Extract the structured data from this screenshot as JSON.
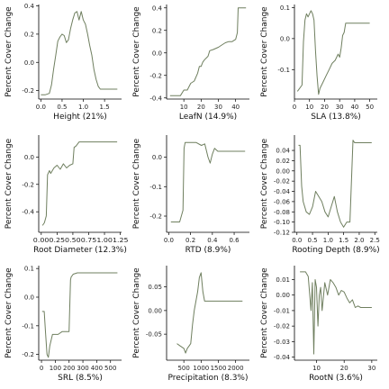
{
  "colors": {
    "line": "#6f7f5f",
    "axis": "#000000"
  },
  "chart_data": [
    {
      "type": "line",
      "title": "",
      "xlabel": "Height  (21%)",
      "ylabel": "Percent Cover Change",
      "xlim": [
        -0.05,
        1.9
      ],
      "ylim": [
        -0.26,
        0.41
      ],
      "xticks": [
        0.0,
        0.5,
        1.0,
        1.5
      ],
      "xtick_labels": [
        "0.0",
        "0.5",
        "1.0",
        "1.5"
      ],
      "yticks": [
        -0.2,
        0.0,
        0.2,
        0.4
      ],
      "ytick_labels": [
        "-0.2",
        "0.0",
        "0.2",
        "0.4"
      ],
      "series": [
        {
          "x": [
            0.0,
            0.1,
            0.2,
            0.25,
            0.3,
            0.35,
            0.4,
            0.45,
            0.5,
            0.55,
            0.6,
            0.65,
            0.7,
            0.75,
            0.8,
            0.85,
            0.9,
            0.95,
            1.0,
            1.05,
            1.1,
            1.15,
            1.2,
            1.25,
            1.3,
            1.35,
            1.4,
            1.45,
            1.8
          ],
          "y": [
            -0.23,
            -0.23,
            -0.22,
            -0.16,
            -0.05,
            0.05,
            0.15,
            0.18,
            0.2,
            0.19,
            0.14,
            0.16,
            0.24,
            0.3,
            0.35,
            0.36,
            0.3,
            0.36,
            0.3,
            0.27,
            0.2,
            0.12,
            0.05,
            -0.05,
            -0.12,
            -0.17,
            -0.19,
            -0.19,
            -0.19
          ]
        }
      ]
    },
    {
      "type": "line",
      "title": "",
      "xlabel": "LeafN  (14.9%)",
      "ylabel": "Percent Cover Change",
      "xlim": [
        0,
        48
      ],
      "ylim": [
        -0.41,
        0.43
      ],
      "xticks": [
        10,
        20,
        30,
        40
      ],
      "xtick_labels": [
        "10",
        "20",
        "30",
        "40"
      ],
      "yticks": [
        -0.4,
        -0.2,
        0.0,
        0.2,
        0.4
      ],
      "ytick_labels": [
        "-0.4",
        "-0.2",
        "0.0",
        "0.2",
        "0.4"
      ],
      "series": [
        {
          "x": [
            2,
            8,
            10,
            12,
            14,
            16,
            18,
            19,
            20,
            21,
            22,
            24,
            25,
            27,
            30,
            32,
            34,
            36,
            38,
            40,
            41,
            41.5,
            46
          ],
          "y": [
            -0.38,
            -0.38,
            -0.33,
            -0.33,
            -0.27,
            -0.25,
            -0.18,
            -0.12,
            -0.12,
            -0.08,
            -0.06,
            -0.03,
            0.02,
            0.03,
            0.05,
            0.07,
            0.09,
            0.1,
            0.1,
            0.12,
            0.18,
            0.4,
            0.4
          ]
        }
      ]
    },
    {
      "type": "line",
      "title": "",
      "xlabel": "SLA  (13.8%)",
      "ylabel": "Percent Cover Change",
      "xlim": [
        0,
        55
      ],
      "ylim": [
        -0.195,
        0.11
      ],
      "xticks": [
        0,
        10,
        20,
        30,
        40,
        50
      ],
      "xtick_labels": [
        "0",
        "10",
        "20",
        "30",
        "40",
        "50"
      ],
      "yticks": [
        -0.1,
        0.0,
        0.1
      ],
      "ytick_labels": [
        "-0.1",
        "0.0",
        "0.1"
      ],
      "series": [
        {
          "x": [
            2,
            5,
            6,
            7,
            8,
            9,
            10,
            11,
            12,
            13,
            14,
            15,
            16,
            17,
            19,
            21,
            23,
            25,
            27,
            29,
            30,
            31,
            32,
            33,
            34,
            35,
            50
          ],
          "y": [
            -0.17,
            -0.15,
            -0.01,
            0.06,
            0.08,
            0.07,
            0.08,
            0.09,
            0.08,
            0.06,
            -0.04,
            -0.12,
            -0.18,
            -0.16,
            -0.14,
            -0.12,
            -0.1,
            -0.08,
            -0.07,
            -0.05,
            -0.06,
            -0.03,
            0.01,
            0.02,
            0.05,
            0.05,
            0.05
          ]
        }
      ]
    },
    {
      "type": "line",
      "title": "",
      "xlabel": "Root Diameter  (12.3%)",
      "ylabel": "Percent Cover Change",
      "xlim": [
        -0.04,
        1.27
      ],
      "ylim": [
        -0.55,
        0.16
      ],
      "xticks": [
        0.0,
        0.25,
        0.5,
        0.75,
        1.0,
        1.25
      ],
      "xtick_labels": [
        "0.000.250.500.751.001.25"
      ],
      "yticks": [
        -0.4,
        -0.2,
        0.0
      ],
      "ytick_labels": [
        "-0.4",
        "-0.2",
        "0.0"
      ],
      "series": [
        {
          "x": [
            0.02,
            0.05,
            0.08,
            0.1,
            0.13,
            0.15,
            0.2,
            0.25,
            0.3,
            0.35,
            0.4,
            0.45,
            0.5,
            0.52,
            0.55,
            0.6,
            0.7,
            1.2
          ],
          "y": [
            -0.5,
            -0.48,
            -0.43,
            -0.13,
            -0.1,
            -0.12,
            -0.08,
            -0.06,
            -0.09,
            -0.05,
            -0.08,
            -0.06,
            -0.05,
            0.07,
            0.08,
            0.11,
            0.11,
            0.11
          ]
        }
      ]
    },
    {
      "type": "line",
      "title": "",
      "xlabel": "RTD  (8.9%)",
      "ylabel": "Percent Cover Change",
      "xlim": [
        -0.02,
        0.74
      ],
      "ylim": [
        -0.255,
        0.075
      ],
      "xticks": [
        0.0,
        0.2,
        0.4,
        0.6
      ],
      "xtick_labels": [
        "0.0",
        "0.2",
        "0.4",
        "0.6"
      ],
      "yticks": [
        -0.2,
        -0.1,
        0.0
      ],
      "ytick_labels": [
        "-0.2",
        "-0.1",
        "0.0"
      ],
      "series": [
        {
          "x": [
            0.02,
            0.1,
            0.13,
            0.14,
            0.15,
            0.2,
            0.25,
            0.3,
            0.33,
            0.36,
            0.38,
            0.4,
            0.42,
            0.45,
            0.5,
            0.7
          ],
          "y": [
            -0.22,
            -0.22,
            -0.18,
            0.03,
            0.05,
            0.05,
            0.05,
            0.04,
            0.045,
            0.0,
            -0.02,
            0.01,
            0.03,
            0.02,
            0.02,
            0.02
          ]
        }
      ]
    },
    {
      "type": "line",
      "title": "",
      "xlabel": "Rooting Depth  (8.9%)",
      "ylabel": "Percent Cover Change",
      "xlim": [
        -0.08,
        2.58
      ],
      "ylim": [
        -0.12,
        0.07
      ],
      "xticks": [
        0.0,
        0.5,
        1.0,
        1.5,
        2.0,
        2.5
      ],
      "xtick_labels": [
        "0.0",
        "0.5",
        "1.0",
        "1.5",
        "2.0",
        "2.5"
      ],
      "yticks": [
        -0.12,
        -0.1,
        -0.08,
        -0.06,
        -0.04,
        -0.02,
        0.0,
        0.02,
        0.04
      ],
      "ytick_labels": [
        "-0.12",
        "-0.10",
        "-0.08",
        "-0.06",
        "-0.04",
        "-0.02",
        "0.00",
        "0.02",
        "0.04"
      ],
      "series": [
        {
          "x": [
            0.05,
            0.1,
            0.15,
            0.2,
            0.3,
            0.4,
            0.5,
            0.6,
            0.7,
            0.8,
            0.9,
            1.0,
            1.1,
            1.2,
            1.3,
            1.4,
            1.5,
            1.6,
            1.7,
            1.8,
            1.85,
            2.0,
            2.4
          ],
          "y": [
            0.05,
            0.05,
            -0.03,
            -0.06,
            -0.08,
            -0.085,
            -0.07,
            -0.04,
            -0.05,
            -0.06,
            -0.08,
            -0.09,
            -0.07,
            -0.05,
            -0.08,
            -0.1,
            -0.11,
            -0.1,
            -0.1,
            0.06,
            0.055,
            0.055,
            0.055
          ]
        }
      ]
    },
    {
      "type": "line",
      "title": "",
      "xlabel": "SRL  (8.5%)",
      "ylabel": "Percent Cover Change",
      "xlim": [
        -20,
        580
      ],
      "ylim": [
        -0.22,
        0.11
      ],
      "xticks": [
        0,
        100,
        200,
        300,
        400,
        500
      ],
      "xtick_labels": [
        "0",
        "100",
        "200",
        "300",
        "400",
        "500"
      ],
      "yticks": [
        -0.2,
        -0.1,
        0.0,
        0.1
      ],
      "ytick_labels": [
        "-0.2",
        "-0.1",
        "0.0",
        "0.1"
      ],
      "series": [
        {
          "x": [
            5,
            20,
            30,
            40,
            50,
            60,
            70,
            80,
            100,
            120,
            150,
            180,
            200,
            210,
            215,
            230,
            260,
            300,
            550
          ],
          "y": [
            -0.05,
            -0.05,
            -0.13,
            -0.2,
            -0.21,
            -0.17,
            -0.15,
            -0.13,
            -0.13,
            -0.13,
            -0.12,
            -0.12,
            -0.12,
            0.06,
            0.07,
            0.08,
            0.085,
            0.085,
            0.085
          ]
        }
      ]
    },
    {
      "type": "line",
      "title": "",
      "xlabel": "Precipitation  (8.3%)",
      "ylabel": "Percent Cover Change",
      "xlim": [
        0,
        2400
      ],
      "ylim": [
        -0.105,
        0.095
      ],
      "xticks": [
        500,
        1000,
        1500,
        2000
      ],
      "xtick_labels": [
        "500",
        "1000",
        "1500",
        "2000"
      ],
      "yticks": [
        -0.05,
        0.0,
        0.05
      ],
      "ytick_labels": [
        "-0.05",
        "0.00",
        "0.05"
      ],
      "series": [
        {
          "x": [
            300,
            400,
            500,
            550,
            600,
            650,
            700,
            750,
            800,
            850,
            900,
            950,
            1000,
            1050,
            1100,
            2200
          ],
          "y": [
            -0.07,
            -0.075,
            -0.08,
            -0.09,
            -0.08,
            -0.075,
            -0.07,
            -0.03,
            0.0,
            0.02,
            0.04,
            0.07,
            0.08,
            0.04,
            0.02,
            0.02
          ]
        }
      ]
    },
    {
      "type": "line",
      "title": "",
      "xlabel": "RootN  (3.6%)",
      "ylabel": "Percent Cover Change",
      "xlim": [
        2,
        32
      ],
      "ylim": [
        -0.042,
        0.019
      ],
      "xticks": [
        10,
        20,
        30
      ],
      "xtick_labels": [
        "10",
        "20",
        "30"
      ],
      "yticks": [
        -0.04,
        -0.03,
        -0.02,
        -0.01,
        0.0,
        0.01
      ],
      "ytick_labels": [
        "-0.04",
        "-0.03",
        "-0.02",
        "-0.01",
        "0.00",
        "0.01"
      ],
      "series": [
        {
          "x": [
            4,
            6,
            7,
            8,
            8.5,
            9,
            9.5,
            10,
            10.5,
            11,
            11.5,
            12,
            13,
            14,
            15,
            16,
            17,
            18,
            19,
            20,
            21,
            22,
            23,
            24,
            25,
            26,
            30
          ],
          "y": [
            0.015,
            0.015,
            0.012,
            -0.01,
            0.008,
            -0.038,
            0.01,
            0.005,
            -0.02,
            0.0,
            0.005,
            -0.01,
            0.008,
            0.0,
            0.01,
            0.008,
            0.005,
            0.0,
            0.003,
            0.002,
            -0.002,
            -0.005,
            -0.003,
            -0.008,
            -0.007,
            -0.008,
            -0.008
          ]
        }
      ]
    }
  ]
}
